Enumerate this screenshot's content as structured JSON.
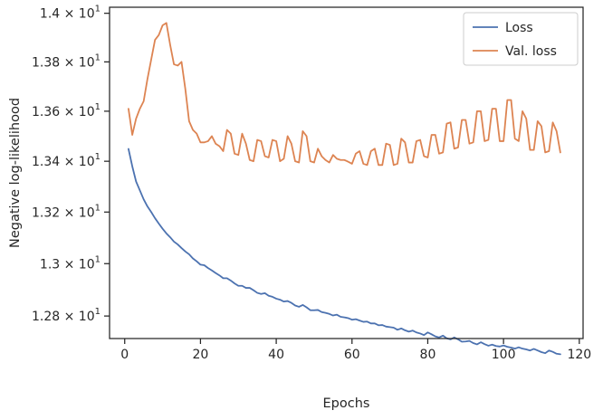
{
  "chart_data": {
    "type": "line",
    "xlabel": "Epochs",
    "ylabel": "Negative log-likelihood",
    "xlim": [
      -4,
      121
    ],
    "ylim": [
      12.715,
      14.025
    ],
    "y_scale": "log",
    "xticks": [
      0,
      20,
      40,
      60,
      80,
      100,
      120
    ],
    "xtick_labels": [
      "0",
      "20",
      "40",
      "60",
      "80",
      "100",
      "120"
    ],
    "yticks": [
      12.8,
      13.0,
      13.2,
      13.4,
      13.6,
      13.8,
      14.0
    ],
    "ytick_labels": [
      {
        "base": "1.28",
        "mult": "×",
        "pow": "10",
        "exp": "1"
      },
      {
        "base": "1.3",
        "mult": "×",
        "pow": "10",
        "exp": "1"
      },
      {
        "base": "1.32",
        "mult": "×",
        "pow": "10",
        "exp": "1"
      },
      {
        "base": "1.34",
        "mult": "×",
        "pow": "10",
        "exp": "1"
      },
      {
        "base": "1.36",
        "mult": "×",
        "pow": "10",
        "exp": "1"
      },
      {
        "base": "1.38",
        "mult": "×",
        "pow": "10",
        "exp": "1"
      },
      {
        "base": "1.4",
        "mult": "×",
        "pow": "10",
        "exp": "1"
      }
    ],
    "grid": false,
    "legend_position": "top-right",
    "series": [
      {
        "name": "Loss",
        "color": "#4c72b0",
        "x": [
          1,
          2,
          3,
          4,
          5,
          6,
          7,
          8,
          9,
          10,
          11,
          12,
          13,
          14,
          15,
          16,
          17,
          18,
          19,
          20,
          21,
          22,
          23,
          24,
          25,
          26,
          27,
          28,
          29,
          30,
          31,
          32,
          33,
          34,
          35,
          36,
          37,
          38,
          39,
          40,
          41,
          42,
          43,
          44,
          45,
          46,
          47,
          48,
          49,
          50,
          51,
          52,
          53,
          54,
          55,
          56,
          57,
          58,
          59,
          60,
          61,
          62,
          63,
          64,
          65,
          66,
          67,
          68,
          69,
          70,
          71,
          72,
          73,
          74,
          75,
          76,
          77,
          78,
          79,
          80,
          81,
          82,
          83,
          84,
          85,
          86,
          87,
          88,
          89,
          90,
          91,
          92,
          93,
          94,
          95,
          96,
          97,
          98,
          99,
          100,
          101,
          102,
          103,
          104,
          105,
          106,
          107,
          108,
          109,
          110,
          111,
          112,
          113,
          114,
          115
        ],
        "values": [
          13.449,
          13.38,
          13.32,
          13.285,
          13.25,
          13.222,
          13.2,
          13.176,
          13.155,
          13.135,
          13.117,
          13.102,
          13.085,
          13.074,
          13.06,
          13.047,
          13.036,
          13.02,
          13.009,
          12.996,
          12.994,
          12.983,
          12.974,
          12.964,
          12.955,
          12.944,
          12.944,
          12.935,
          12.924,
          12.915,
          12.915,
          12.907,
          12.907,
          12.898,
          12.888,
          12.884,
          12.887,
          12.877,
          12.873,
          12.866,
          12.862,
          12.855,
          12.857,
          12.85,
          12.84,
          12.835,
          12.842,
          12.833,
          12.822,
          12.822,
          12.823,
          12.815,
          12.812,
          12.808,
          12.802,
          12.805,
          12.797,
          12.795,
          12.792,
          12.786,
          12.788,
          12.783,
          12.778,
          12.779,
          12.772,
          12.772,
          12.765,
          12.766,
          12.76,
          12.758,
          12.756,
          12.748,
          12.753,
          12.746,
          12.741,
          12.745,
          12.738,
          12.734,
          12.728,
          12.738,
          12.731,
          12.723,
          12.719,
          12.726,
          12.716,
          12.712,
          12.719,
          12.712,
          12.703,
          12.704,
          12.706,
          12.698,
          12.693,
          12.701,
          12.694,
          12.688,
          12.692,
          12.687,
          12.685,
          12.689,
          12.684,
          12.681,
          12.677,
          12.682,
          12.677,
          12.674,
          12.67,
          12.676,
          12.67,
          12.664,
          12.66,
          12.67,
          12.665,
          12.658,
          12.656
        ]
      },
      {
        "name": "Val. loss",
        "color": "#dd8452",
        "x": [
          1,
          2,
          3,
          4,
          5,
          6,
          7,
          8,
          9,
          10,
          11,
          12,
          13,
          14,
          15,
          16,
          17,
          18,
          19,
          20,
          21,
          22,
          23,
          24,
          25,
          26,
          27,
          28,
          29,
          30,
          31,
          32,
          33,
          34,
          35,
          36,
          37,
          38,
          39,
          40,
          41,
          42,
          43,
          44,
          45,
          46,
          47,
          48,
          49,
          50,
          51,
          52,
          53,
          54,
          55,
          56,
          57,
          58,
          59,
          60,
          61,
          62,
          63,
          64,
          65,
          66,
          67,
          68,
          69,
          70,
          71,
          72,
          73,
          74,
          75,
          76,
          77,
          78,
          79,
          80,
          81,
          82,
          83,
          84,
          85,
          86,
          87,
          88,
          89,
          90,
          91,
          92,
          93,
          94,
          95,
          96,
          97,
          98,
          99,
          100,
          101,
          102,
          103,
          104,
          105,
          106,
          107,
          108,
          109,
          110,
          111,
          112,
          113,
          114,
          115
        ],
        "values": [
          13.61,
          13.505,
          13.57,
          13.61,
          13.64,
          13.73,
          13.81,
          13.89,
          13.91,
          13.95,
          13.96,
          13.87,
          13.79,
          13.785,
          13.8,
          13.69,
          13.56,
          13.525,
          13.51,
          13.475,
          13.475,
          13.48,
          13.5,
          13.47,
          13.46,
          13.44,
          13.525,
          13.51,
          13.43,
          13.425,
          13.51,
          13.47,
          13.405,
          13.4,
          13.485,
          13.48,
          13.42,
          13.415,
          13.485,
          13.48,
          13.4,
          13.41,
          13.5,
          13.47,
          13.4,
          13.395,
          13.52,
          13.5,
          13.4,
          13.395,
          13.45,
          13.42,
          13.405,
          13.395,
          13.425,
          13.41,
          13.405,
          13.405,
          13.398,
          13.39,
          13.43,
          13.44,
          13.39,
          13.385,
          13.44,
          13.45,
          13.385,
          13.385,
          13.47,
          13.465,
          13.385,
          13.39,
          13.49,
          13.475,
          13.395,
          13.395,
          13.48,
          13.485,
          13.42,
          13.415,
          13.505,
          13.505,
          13.43,
          13.435,
          13.55,
          13.555,
          13.45,
          13.455,
          13.565,
          13.565,
          13.47,
          13.475,
          13.6,
          13.6,
          13.48,
          13.485,
          13.61,
          13.61,
          13.48,
          13.48,
          13.645,
          13.645,
          13.49,
          13.48,
          13.6,
          13.57,
          13.445,
          13.445,
          13.56,
          13.54,
          13.435,
          13.44,
          13.555,
          13.52,
          13.435
        ]
      }
    ]
  }
}
